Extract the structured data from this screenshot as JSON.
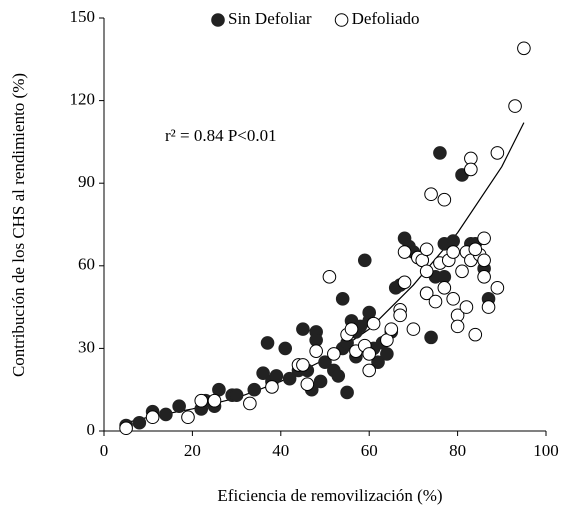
{
  "chart_data": {
    "type": "scatter",
    "x_label": "Eficiencia de removilización (%)",
    "y_label": "Contribución de los CHS al rendimiento (%)",
    "annotation": "r² = 0.84 P<0.01",
    "xlim": [
      0,
      100
    ],
    "xticks": [
      0,
      20,
      40,
      60,
      80,
      100
    ],
    "ylim": [
      0,
      150
    ],
    "yticks": [
      0,
      30,
      60,
      90,
      120,
      150
    ],
    "grid": false,
    "legend_position": "top",
    "series": [
      {
        "name": "Sin Defoliar",
        "color": "#222222",
        "filled": true,
        "x": [
          5,
          8,
          11,
          14,
          17,
          22,
          23,
          25,
          26,
          29,
          30,
          34,
          36,
          37,
          38,
          39,
          41,
          42,
          44,
          45,
          46,
          47,
          48,
          48,
          49,
          50,
          52,
          53,
          54,
          55,
          54,
          55,
          56,
          57,
          57,
          58,
          59,
          60,
          60,
          61,
          62,
          63,
          64,
          65,
          66,
          67,
          68,
          69,
          70,
          72,
          74,
          75,
          76,
          77,
          77,
          79,
          81,
          83,
          84,
          86,
          87,
          73
        ],
        "values": [
          2,
          3,
          7,
          6,
          9,
          8,
          11,
          9,
          15,
          13,
          13,
          15,
          21,
          32,
          18,
          20,
          30,
          19,
          22,
          37,
          22,
          15,
          36,
          33,
          18,
          25,
          22,
          20,
          48,
          14,
          30,
          32,
          40,
          27,
          36,
          38,
          62,
          43,
          40,
          30,
          25,
          32,
          28,
          36,
          52,
          53,
          70,
          67,
          65,
          62,
          34,
          56,
          101,
          68,
          56,
          69,
          93,
          68,
          68,
          59,
          48,
          50
        ]
      },
      {
        "name": "Defoliado",
        "color": "#000000",
        "filled": false,
        "x": [
          5,
          11,
          19,
          22,
          25,
          33,
          38,
          44,
          45,
          46,
          48,
          51,
          52,
          55,
          56,
          57,
          59,
          60,
          60,
          61,
          64,
          65,
          67,
          67,
          68,
          68,
          70,
          71,
          72,
          73,
          73,
          73,
          74,
          75,
          76,
          77,
          77,
          78,
          79,
          79,
          80,
          80,
          81,
          82,
          82,
          83,
          83,
          83,
          84,
          85,
          86,
          86,
          86,
          87,
          89,
          89,
          93,
          95,
          84
        ],
        "values": [
          1,
          5,
          5,
          11,
          11,
          10,
          16,
          24,
          24,
          17,
          29,
          56,
          28,
          35,
          37,
          29,
          31,
          22,
          28,
          39,
          33,
          37,
          44,
          42,
          54,
          65,
          37,
          63,
          62,
          66,
          58,
          50,
          86,
          47,
          61,
          52,
          84,
          62,
          65,
          48,
          42,
          38,
          58,
          65,
          45,
          99,
          95,
          62,
          35,
          64,
          70,
          62,
          56,
          45,
          52,
          101,
          118,
          139,
          66
        ]
      }
    ],
    "trend_line": {
      "x": [
        5,
        10,
        20,
        30,
        40,
        50,
        60,
        70,
        80,
        90,
        95
      ],
      "y": [
        3,
        5,
        8,
        12,
        18,
        26,
        37,
        53,
        72,
        96,
        112
      ]
    }
  }
}
